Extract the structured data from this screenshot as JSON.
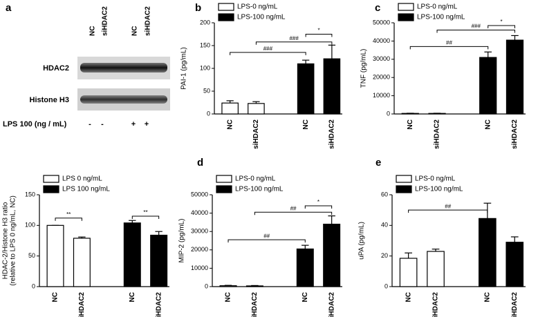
{
  "blot": {
    "label": "a",
    "lanes": [
      "NC",
      "siHDAC2",
      "NC",
      "siHDAC2"
    ],
    "rows": [
      "HDAC2",
      "Histone H3"
    ],
    "treatment": "LPS 100 (ng / mL)",
    "treatment_signs": [
      "-",
      "-",
      "+",
      "+"
    ]
  },
  "chart_data": [
    {
      "type": "bar",
      "label": "b",
      "ylabel": [
        "PAI-1 (pg/mL)"
      ],
      "categories": [
        "NC",
        "siHDAC2",
        "NC",
        "siHDAC2"
      ],
      "series": [
        {
          "name": "LPS-0 ng/mL",
          "color": "#ffffff",
          "values": [
            24,
            23,
            null,
            null
          ],
          "errors": [
            5,
            4,
            null,
            null
          ]
        },
        {
          "name": "LPS-100 ng/mL",
          "color": "#000000",
          "values": [
            null,
            null,
            110,
            121
          ],
          "errors": [
            null,
            null,
            8,
            30
          ]
        }
      ],
      "ylim": [
        0,
        200
      ],
      "yticks": [
        0,
        50,
        100,
        150,
        200
      ],
      "annotations": [
        {
          "text": "###",
          "from": 0,
          "to": 2,
          "y": 135
        },
        {
          "text": "###",
          "from": 1,
          "to": 3,
          "y": 158
        },
        {
          "text": "*",
          "from": 2,
          "to": 3,
          "y": 175
        }
      ]
    },
    {
      "type": "bar",
      "label": "c",
      "ylabel": [
        "TNF (pg/mL)"
      ],
      "categories": [
        "NC",
        "siHDAC2",
        "NC",
        "siHDAC2"
      ],
      "series": [
        {
          "name": "LPS-0 ng/mL",
          "color": "#ffffff",
          "values": [
            300,
            300,
            null,
            null
          ],
          "errors": [
            100,
            100,
            null,
            null
          ]
        },
        {
          "name": "LPS-100 ng/mL",
          "color": "#000000",
          "values": [
            null,
            null,
            31000,
            40500
          ],
          "errors": [
            null,
            null,
            3000,
            2500
          ]
        }
      ],
      "ylim": [
        0,
        50000
      ],
      "yticks": [
        0,
        10000,
        20000,
        30000,
        40000,
        50000
      ],
      "annotations": [
        {
          "text": "##",
          "from": 0,
          "to": 2,
          "y": 37000
        },
        {
          "text": "###",
          "from": 1,
          "to": 3,
          "y": 46000
        },
        {
          "text": "*",
          "from": 2,
          "to": 3,
          "y": 48500
        }
      ]
    },
    {
      "type": "bar",
      "ylabel": [
        "HDAC-2/Histone H3 ratio",
        "(relative to LPS 0 ng/mL, NC)"
      ],
      "categories": [
        "NC",
        "siHDAC2",
        "NC",
        "siHDAC2"
      ],
      "series": [
        {
          "name": "LPS 0 ng/mL",
          "color": "#ffffff",
          "values": [
            100,
            79,
            null,
            null
          ],
          "errors": [
            0,
            2,
            null,
            null
          ]
        },
        {
          "name": "LPS 100 ng/mL",
          "color": "#000000",
          "values": [
            null,
            null,
            104,
            84
          ],
          "errors": [
            null,
            null,
            4,
            6
          ]
        }
      ],
      "ylim": [
        0,
        150
      ],
      "yticks": [
        0,
        50,
        100,
        150
      ],
      "annotations": [
        {
          "text": "**",
          "from": 0,
          "to": 1,
          "y": 112
        },
        {
          "text": "**",
          "from": 2,
          "to": 3,
          "y": 115
        }
      ]
    },
    {
      "type": "bar",
      "label": "d",
      "ylabel": [
        "MIP-2 (pg/mL)"
      ],
      "categories": [
        "NC",
        "siHDAC2",
        "NC",
        "siHDAC2"
      ],
      "series": [
        {
          "name": "LPS-0 ng/mL",
          "color": "#ffffff",
          "values": [
            500,
            400,
            null,
            null
          ],
          "errors": [
            200,
            200,
            null,
            null
          ]
        },
        {
          "name": "LPS-100 ng/mL",
          "color": "#000000",
          "values": [
            null,
            null,
            20500,
            34000
          ],
          "errors": [
            null,
            null,
            2000,
            4500
          ]
        }
      ],
      "ylim": [
        0,
        50000
      ],
      "yticks": [
        0,
        10000,
        20000,
        30000,
        40000,
        50000
      ],
      "annotations": [
        {
          "text": "##",
          "from": 0,
          "to": 2,
          "y": 25500
        },
        {
          "text": "##",
          "from": 1,
          "to": 3,
          "y": 40500
        },
        {
          "text": "*",
          "from": 2,
          "to": 3,
          "y": 44000
        }
      ]
    },
    {
      "type": "bar",
      "label": "e",
      "ylabel": [
        "uPA (pg/mL)"
      ],
      "categories": [
        "NC",
        "siHDAC2",
        "NC",
        "siHDAC2"
      ],
      "series": [
        {
          "name": "LPS-0 ng/mL",
          "color": "#ffffff",
          "values": [
            18.5,
            23,
            null,
            null
          ],
          "errors": [
            3.5,
            1.5,
            null,
            null
          ]
        },
        {
          "name": "LPS-100 ng/mL",
          "color": "#000000",
          "values": [
            null,
            null,
            44.5,
            29
          ],
          "errors": [
            null,
            null,
            10,
            3.5
          ]
        }
      ],
      "ylim": [
        0,
        60
      ],
      "yticks": [
        0,
        20,
        40,
        60
      ],
      "annotations": [
        {
          "text": "##",
          "from": 0,
          "to": 2,
          "y": 50
        }
      ]
    }
  ]
}
